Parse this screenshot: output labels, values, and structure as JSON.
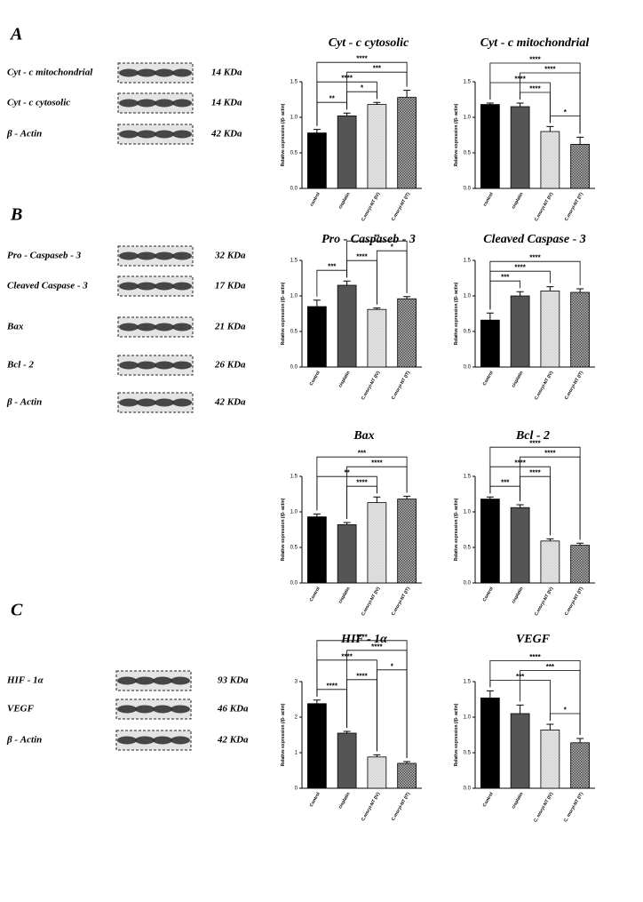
{
  "panels": [
    {
      "letter": "A",
      "blots": [
        {
          "label": "Cyt - c mitochondrial",
          "kda": "14 KDa"
        },
        {
          "label": "Cyt - c cytosolic",
          "kda": "14 KDa"
        },
        {
          "label": "β - Actin",
          "kda": "42 KDa"
        }
      ]
    },
    {
      "letter": "B",
      "blots": [
        {
          "label": "Pro - Caspaseb - 3",
          "kda": "32 KDa"
        },
        {
          "label": "Cleaved Caspase - 3",
          "kda": "17 KDa"
        },
        {
          "label": "Bax",
          "kda": "21 KDa"
        },
        {
          "label": "Bcl - 2",
          "kda": "26 KDa"
        },
        {
          "label": "β - Actin",
          "kda": "42 KDa"
        }
      ]
    },
    {
      "letter": "C",
      "blots": [
        {
          "label": "HIF - 1α",
          "kda": "93 KDa"
        },
        {
          "label": "VEGF",
          "kda": "46 KDa"
        },
        {
          "label": "β - Actin",
          "kda": "42 KDa"
        }
      ]
    }
  ],
  "chart_data": [
    {
      "type": "bar",
      "title": "Cyt - c cytosolic",
      "ylabel": "Relative expression (/β- actin)",
      "categories": [
        "control",
        "cisplatin",
        "C.moryi-NT (IV)",
        "C.moryi-NT (IT)"
      ],
      "values": [
        0.78,
        1.02,
        1.18,
        1.28
      ],
      "errors": [
        0.05,
        0.04,
        0.03,
        0.1
      ],
      "colors": [
        "#000000",
        "#555555",
        "#cfcfcf",
        "#505050"
      ],
      "patterned": [
        false,
        false,
        true,
        true
      ],
      "ylim": [
        0,
        1.5
      ],
      "yticks": [
        {
          "value": 0,
          "label": "0.0"
        },
        {
          "value": 0.5,
          "label": "0.5"
        },
        {
          "value": 1,
          "label": "1.0"
        },
        {
          "value": 1.5,
          "label": "1.5"
        }
      ],
      "significance": [
        {
          "between": [
            0,
            1
          ],
          "label": "**"
        },
        {
          "between": [
            1,
            2
          ],
          "label": "*"
        },
        {
          "between": [
            0,
            2
          ],
          "label": "****"
        },
        {
          "between": [
            1,
            3
          ],
          "label": "***"
        },
        {
          "between": [
            0,
            3
          ],
          "label": "****"
        }
      ]
    },
    {
      "type": "bar",
      "title": "Cyt - c mitochondrial",
      "ylabel": "Relative expression (/β- actin)",
      "categories": [
        "control",
        "cisplatin",
        "C.moryi-NT (IV)",
        "C.moryi-NT (IT)"
      ],
      "values": [
        1.18,
        1.15,
        0.8,
        0.62
      ],
      "errors": [
        0.02,
        0.05,
        0.07,
        0.1
      ],
      "colors": [
        "#000000",
        "#555555",
        "#cfcfcf",
        "#505050"
      ],
      "patterned": [
        false,
        false,
        true,
        true
      ],
      "ylim": [
        0,
        1.5
      ],
      "yticks": [
        {
          "value": 0,
          "label": "0.0"
        },
        {
          "value": 0.5,
          "label": "0.5"
        },
        {
          "value": 1,
          "label": "1.0"
        },
        {
          "value": 1.5,
          "label": "1.5"
        }
      ],
      "significance": [
        {
          "between": [
            2,
            3
          ],
          "label": "*"
        },
        {
          "between": [
            1,
            2
          ],
          "label": "****"
        },
        {
          "between": [
            0,
            2
          ],
          "label": "****"
        },
        {
          "between": [
            1,
            3
          ],
          "label": "****"
        },
        {
          "between": [
            0,
            3
          ],
          "label": "****"
        }
      ]
    },
    {
      "type": "bar",
      "title": "Pro - Caspaseb - 3",
      "ylabel": "Relative expression (/β- actin)",
      "categories": [
        "Control",
        "cisplatin",
        "C.moryi-NT (IV)",
        "C.moryi-NT (IT)"
      ],
      "values": [
        0.85,
        1.15,
        0.81,
        0.96
      ],
      "errors": [
        0.09,
        0.06,
        0.02,
        0.03
      ],
      "colors": [
        "#000000",
        "#555555",
        "#cfcfcf",
        "#505050"
      ],
      "patterned": [
        false,
        false,
        true,
        true
      ],
      "ylim": [
        0,
        1.5
      ],
      "yticks": [
        {
          "value": 0,
          "label": "0.0"
        },
        {
          "value": 0.5,
          "label": "0.5"
        },
        {
          "value": 1,
          "label": "1.0"
        },
        {
          "value": 1.5,
          "label": "1.5"
        }
      ],
      "significance": [
        {
          "between": [
            0,
            1
          ],
          "label": "***"
        },
        {
          "between": [
            1,
            2
          ],
          "label": "****"
        },
        {
          "between": [
            2,
            3
          ],
          "label": "*"
        },
        {
          "between": [
            1,
            3
          ],
          "label": "**"
        }
      ]
    },
    {
      "type": "bar",
      "title": "Cleaved Caspase - 3",
      "ylabel": "Relative expression (/β- actin)",
      "categories": [
        "Control",
        "cisplatin",
        "C.moryi-NT (IV)",
        "C.moryi-NT (IT)"
      ],
      "values": [
        0.66,
        1.0,
        1.07,
        1.05
      ],
      "errors": [
        0.1,
        0.06,
        0.06,
        0.05
      ],
      "colors": [
        "#000000",
        "#555555",
        "#cfcfcf",
        "#505050"
      ],
      "patterned": [
        false,
        false,
        true,
        true
      ],
      "ylim": [
        0,
        1.5
      ],
      "yticks": [
        {
          "value": 0,
          "label": "0.0"
        },
        {
          "value": 0.5,
          "label": "0.5"
        },
        {
          "value": 1,
          "label": "1.0"
        },
        {
          "value": 1.5,
          "label": "1.5"
        }
      ],
      "significance": [
        {
          "between": [
            0,
            1
          ],
          "label": "***"
        },
        {
          "between": [
            0,
            2
          ],
          "label": "****"
        },
        {
          "between": [
            0,
            3
          ],
          "label": "****"
        }
      ]
    },
    {
      "type": "bar",
      "title": "Bax",
      "ylabel": "Relative expression (/β- actin)",
      "categories": [
        "Control",
        "cisplatin",
        "C.moryi-NT (IV)",
        "C.moryi-NT (IT)"
      ],
      "values": [
        0.93,
        0.82,
        1.13,
        1.18
      ],
      "errors": [
        0.04,
        0.03,
        0.08,
        0.04
      ],
      "colors": [
        "#000000",
        "#555555",
        "#cfcfcf",
        "#505050"
      ],
      "patterned": [
        false,
        false,
        true,
        true
      ],
      "ylim": [
        0,
        1.5
      ],
      "yticks": [
        {
          "value": 0,
          "label": "0.0"
        },
        {
          "value": 0.5,
          "label": "0.5"
        },
        {
          "value": 1,
          "label": "1.0"
        },
        {
          "value": 1.5,
          "label": "1.5"
        }
      ],
      "significance": [
        {
          "between": [
            1,
            2
          ],
          "label": "****"
        },
        {
          "between": [
            0,
            2
          ],
          "label": "**"
        },
        {
          "between": [
            1,
            3
          ],
          "label": "****"
        },
        {
          "between": [
            0,
            3
          ],
          "label": "***"
        }
      ]
    },
    {
      "type": "bar",
      "title": "Bcl - 2",
      "ylabel": "Relative expression (/β- actin)",
      "categories": [
        "Control",
        "cisplatin",
        "C.moryi-NT (IV)",
        "C.moryi-NT (IT)"
      ],
      "values": [
        1.18,
        1.06,
        0.59,
        0.53
      ],
      "errors": [
        0.03,
        0.04,
        0.03,
        0.03
      ],
      "colors": [
        "#000000",
        "#555555",
        "#cfcfcf",
        "#505050"
      ],
      "patterned": [
        false,
        false,
        true,
        true
      ],
      "ylim": [
        0,
        1.5
      ],
      "yticks": [
        {
          "value": 0,
          "label": "0.0"
        },
        {
          "value": 0.5,
          "label": "0.5"
        },
        {
          "value": 1,
          "label": "1.0"
        },
        {
          "value": 1.5,
          "label": "1.5"
        }
      ],
      "significance": [
        {
          "between": [
            0,
            1
          ],
          "label": "***"
        },
        {
          "between": [
            1,
            2
          ],
          "label": "****"
        },
        {
          "between": [
            0,
            2
          ],
          "label": "****"
        },
        {
          "between": [
            1,
            3
          ],
          "label": "****"
        },
        {
          "between": [
            0,
            3
          ],
          "label": "****"
        }
      ]
    },
    {
      "type": "bar",
      "title": "HIF - 1α",
      "ylabel": "Relative expression (/β- actin)",
      "categories": [
        "Control",
        "cisplatin",
        "C.moryi-NT (IV)",
        "C.moryi-NT (IT)"
      ],
      "values": [
        2.38,
        1.55,
        0.88,
        0.7
      ],
      "errors": [
        0.1,
        0.05,
        0.06,
        0.05
      ],
      "colors": [
        "#000000",
        "#555555",
        "#cfcfcf",
        "#505050"
      ],
      "patterned": [
        false,
        false,
        true,
        true
      ],
      "ylim": [
        0,
        3
      ],
      "yticks": [
        0,
        1,
        2,
        3
      ],
      "significance": [
        {
          "between": [
            0,
            1
          ],
          "label": "****"
        },
        {
          "between": [
            1,
            2
          ],
          "label": "****"
        },
        {
          "between": [
            2,
            3
          ],
          "label": "*"
        },
        {
          "between": [
            0,
            2
          ],
          "label": "****"
        },
        {
          "between": [
            1,
            3
          ],
          "label": "****"
        },
        {
          "between": [
            0,
            3
          ],
          "label": "****"
        }
      ]
    },
    {
      "type": "bar",
      "title": "VEGF",
      "ylabel": "Relative expression (/β- actin)",
      "categories": [
        "Control",
        "cisplatin",
        "C. moryi-NT (IV)",
        "C. moryi-NT (IT)"
      ],
      "values": [
        1.27,
        1.05,
        0.82,
        0.64
      ],
      "errors": [
        0.1,
        0.12,
        0.08,
        0.06
      ],
      "colors": [
        "#000000",
        "#555555",
        "#cfcfcf",
        "#505050"
      ],
      "patterned": [
        false,
        false,
        true,
        true
      ],
      "ylim": [
        0,
        1.5
      ],
      "yticks": [
        {
          "value": 0,
          "label": "0.0"
        },
        {
          "value": 0.5,
          "label": "0.5"
        },
        {
          "value": 1,
          "label": "1.0"
        },
        {
          "value": 1.5,
          "label": "1.5"
        }
      ],
      "significance": [
        {
          "between": [
            2,
            3
          ],
          "label": "*"
        },
        {
          "between": [
            0,
            2
          ],
          "label": "***"
        },
        {
          "between": [
            1,
            3
          ],
          "label": "***"
        },
        {
          "between": [
            0,
            3
          ],
          "label": "****"
        }
      ]
    }
  ]
}
